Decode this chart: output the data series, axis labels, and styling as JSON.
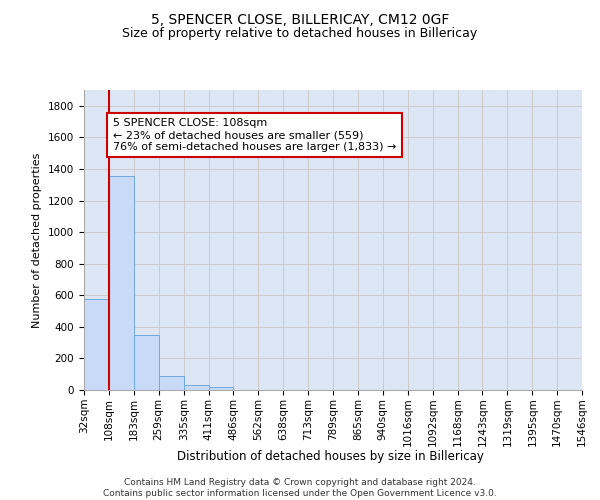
{
  "title1": "5, SPENCER CLOSE, BILLERICAY, CM12 0GF",
  "title2": "Size of property relative to detached houses in Billericay",
  "xlabel": "Distribution of detached houses by size in Billericay",
  "ylabel": "Number of detached properties",
  "bar_edges": [
    32,
    108,
    183,
    259,
    335,
    411,
    486,
    562,
    638,
    713,
    789,
    865,
    940,
    1016,
    1092,
    1168,
    1243,
    1319,
    1395,
    1470,
    1546
  ],
  "bar_heights": [
    575,
    1355,
    350,
    90,
    30,
    20,
    0,
    0,
    0,
    0,
    0,
    0,
    0,
    0,
    0,
    0,
    0,
    0,
    0,
    0
  ],
  "bar_color": "#c9daf8",
  "bar_edgecolor": "#6fa8dc",
  "vline_x": 108,
  "vline_color": "#cc0000",
  "annotation_text": "5 SPENCER CLOSE: 108sqm\n← 23% of detached houses are smaller (559)\n76% of semi-detached houses are larger (1,833) →",
  "annotation_box_edgecolor": "#cc0000",
  "annotation_box_facecolor": "white",
  "ylim": [
    0,
    1900
  ],
  "yticks": [
    0,
    200,
    400,
    600,
    800,
    1000,
    1200,
    1400,
    1600,
    1800
  ],
  "grid_color": "#cccccc",
  "background_color": "#dce6f5",
  "footer_line1": "Contains HM Land Registry data © Crown copyright and database right 2024.",
  "footer_line2": "Contains public sector information licensed under the Open Government Licence v3.0.",
  "title1_fontsize": 10,
  "title2_fontsize": 9,
  "xlabel_fontsize": 8.5,
  "ylabel_fontsize": 8,
  "tick_fontsize": 7.5,
  "annotation_fontsize": 8,
  "footer_fontsize": 6.5
}
